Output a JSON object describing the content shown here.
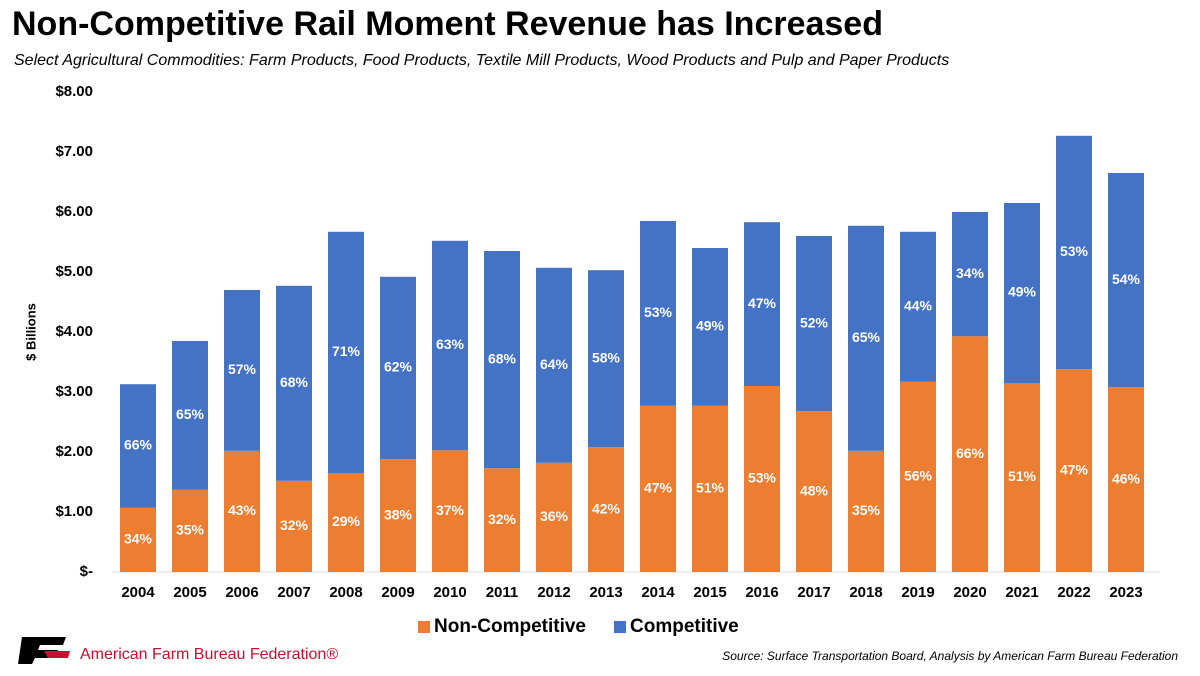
{
  "chart_data": {
    "type": "stacked_bar",
    "title": "Non-Competitive Rail Moment Revenue has Increased",
    "subtitle": "Select Agricultural Commodities: Farm Products, Food Products, Textile Mill Products, Wood Products and Pulp and Paper Products",
    "y_label": "$ Billions",
    "categories": [
      "2004",
      "2005",
      "2006",
      "2007",
      "2008",
      "2009",
      "2010",
      "2011",
      "2012",
      "2013",
      "2014",
      "2015",
      "2016",
      "2017",
      "2018",
      "2019",
      "2020",
      "2021",
      "2022",
      "2023"
    ],
    "series": [
      {
        "name": "Non-Competitive",
        "color": "#ed7d31",
        "values": [
          1.07,
          1.37,
          2.02,
          1.52,
          1.65,
          1.88,
          2.03,
          1.73,
          1.82,
          2.08,
          2.77,
          2.77,
          3.1,
          2.68,
          2.02,
          3.17,
          3.93,
          3.15,
          3.38,
          3.08
        ],
        "labels": [
          "34%",
          "35%",
          "43%",
          "32%",
          "29%",
          "38%",
          "37%",
          "32%",
          "36%",
          "42%",
          "47%",
          "51%",
          "53%",
          "48%",
          "35%",
          "56%",
          "66%",
          "51%",
          "47%",
          "46%"
        ]
      },
      {
        "name": "Competitive",
        "color": "#4472c4",
        "values": [
          2.06,
          2.48,
          2.68,
          3.25,
          4.02,
          3.04,
          3.49,
          3.62,
          3.25,
          2.95,
          3.08,
          2.63,
          2.73,
          2.92,
          3.75,
          2.5,
          2.07,
          3.0,
          3.89,
          3.57
        ],
        "labels": [
          "66%",
          "65%",
          "57%",
          "68%",
          "71%",
          "62%",
          "63%",
          "68%",
          "64%",
          "58%",
          "53%",
          "49%",
          "47%",
          "52%",
          "65%",
          "44%",
          "34%",
          "49%",
          "53%",
          "54%"
        ]
      }
    ],
    "ylim": [
      0,
      8
    ],
    "yticks": [
      {
        "value": 0,
        "label": "$-"
      },
      {
        "value": 1,
        "label": "$1.00"
      },
      {
        "value": 2,
        "label": "$2.00"
      },
      {
        "value": 3,
        "label": "$3.00"
      },
      {
        "value": 4,
        "label": "$4.00"
      },
      {
        "value": 5,
        "label": "$5.00"
      },
      {
        "value": 6,
        "label": "$6.00"
      },
      {
        "value": 7,
        "label": "$7.00"
      },
      {
        "value": 8,
        "label": "$8.00"
      }
    ],
    "grid": false,
    "legend": "bottom",
    "organization": "American Farm Bureau Federation®",
    "source": "Source: Surface Transportation Board, Analysis by American Farm Bureau Federation"
  }
}
